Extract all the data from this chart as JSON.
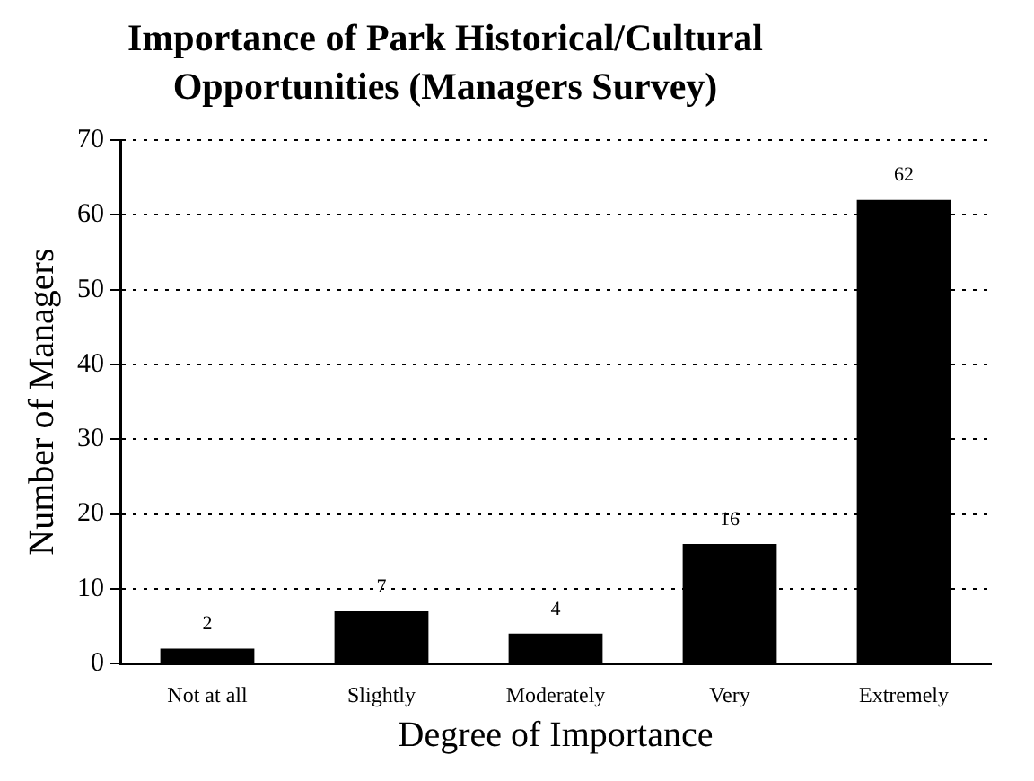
{
  "chart_data": {
    "type": "bar",
    "title": "Importance of Park Historical/Cultural Opportunities (Managers Survey)",
    "xlabel": "Degree of Importance",
    "ylabel": "Number of Managers",
    "categories": [
      "Not at all",
      "Slightly",
      "Moderately",
      "Very",
      "Extremely"
    ],
    "values": [
      2,
      7,
      4,
      16,
      62
    ],
    "color": "#000000",
    "ylim": [
      0,
      70
    ],
    "yticks": [
      0,
      10,
      20,
      30,
      40,
      50,
      60,
      70
    ],
    "grid": "y",
    "data_labels": true,
    "legend": false
  }
}
